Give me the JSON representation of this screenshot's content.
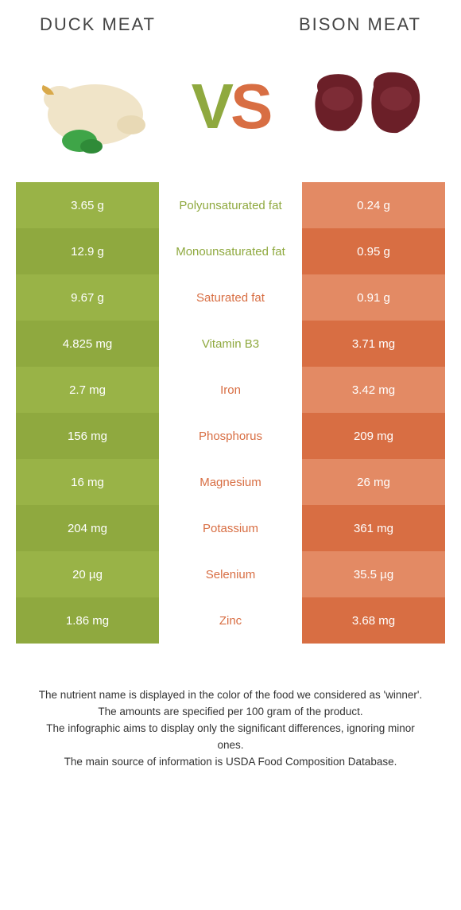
{
  "header": {
    "left_title": "Duck meat",
    "right_title": "Bison meat"
  },
  "colors": {
    "left_primary": "#8fa93f",
    "left_alt": "#99b347",
    "right_primary": "#d86e43",
    "right_alt": "#e38a64",
    "background": "#ffffff",
    "text": "#333333"
  },
  "vs": {
    "v": "V",
    "s": "S"
  },
  "table": {
    "type": "table",
    "columns": [
      "left_value",
      "nutrient",
      "right_value"
    ],
    "rows": [
      {
        "left": "3.65 g",
        "nutrient": "Polyunsaturated fat",
        "right": "0.24 g",
        "winner": "left"
      },
      {
        "left": "12.9 g",
        "nutrient": "Monounsaturated fat",
        "right": "0.95 g",
        "winner": "left"
      },
      {
        "left": "9.67 g",
        "nutrient": "Saturated fat",
        "right": "0.91 g",
        "winner": "right"
      },
      {
        "left": "4.825 mg",
        "nutrient": "Vitamin B3",
        "right": "3.71 mg",
        "winner": "left"
      },
      {
        "left": "2.7 mg",
        "nutrient": "Iron",
        "right": "3.42 mg",
        "winner": "right"
      },
      {
        "left": "156 mg",
        "nutrient": "Phosphorus",
        "right": "209 mg",
        "winner": "right"
      },
      {
        "left": "16 mg",
        "nutrient": "Magnesium",
        "right": "26 mg",
        "winner": "right"
      },
      {
        "left": "204 mg",
        "nutrient": "Potassium",
        "right": "361 mg",
        "winner": "right"
      },
      {
        "left": "20 µg",
        "nutrient": "Selenium",
        "right": "35.5 µg",
        "winner": "right"
      },
      {
        "left": "1.86 mg",
        "nutrient": "Zinc",
        "right": "3.68 mg",
        "winner": "right"
      }
    ]
  },
  "footer": {
    "line1": "The nutrient name is displayed in the color of the food we considered as 'winner'.",
    "line2": "The amounts are specified per 100 gram of the product.",
    "line3": "The infographic aims to display only the significant differences, ignoring minor ones.",
    "line4": "The main source of information is USDA Food Composition Database."
  }
}
